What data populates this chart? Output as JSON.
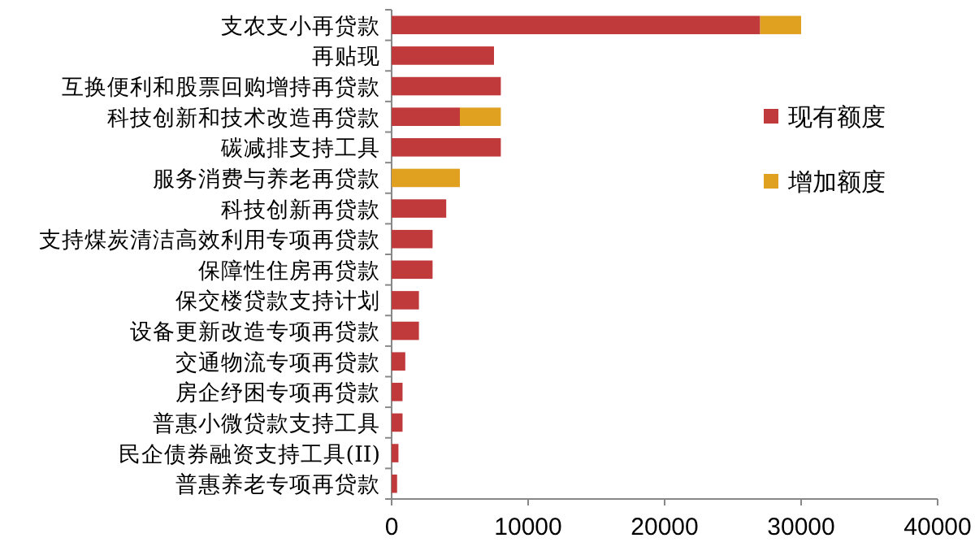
{
  "chart_data": {
    "type": "bar",
    "orientation": "horizontal",
    "stacked": true,
    "categories": [
      "支农支小再贷款",
      "再贴现",
      "互换便利和股票回购增持再贷款",
      "科技创新和技术改造再贷款",
      "碳减排支持工具",
      "服务消费与养老再贷款",
      "科技创新再贷款",
      "支持煤炭清洁高效利用专项再贷款",
      "保障性住房再贷款",
      "保交楼贷款支持计划",
      "设备更新改造专项再贷款",
      "交通物流专项再贷款",
      "房企纾困专项再贷款",
      "普惠小微贷款支持工具",
      "民企债券融资支持工具(II)",
      "普惠养老专项再贷款"
    ],
    "series": [
      {
        "name": "现有额度",
        "color": "#c0393b",
        "values": [
          27000,
          7500,
          8000,
          5000,
          8000,
          null,
          4000,
          3000,
          3000,
          2000,
          2000,
          1000,
          800,
          800,
          500,
          400
        ]
      },
      {
        "name": "增加额度",
        "color": "#e0a020",
        "values": [
          3000,
          null,
          null,
          3000,
          null,
          5000,
          null,
          null,
          null,
          null,
          null,
          null,
          null,
          null,
          null,
          null
        ]
      }
    ],
    "xlim": [
      0,
      40000
    ],
    "xticks": [
      0,
      10000,
      20000,
      30000,
      40000
    ],
    "legend": "right"
  }
}
